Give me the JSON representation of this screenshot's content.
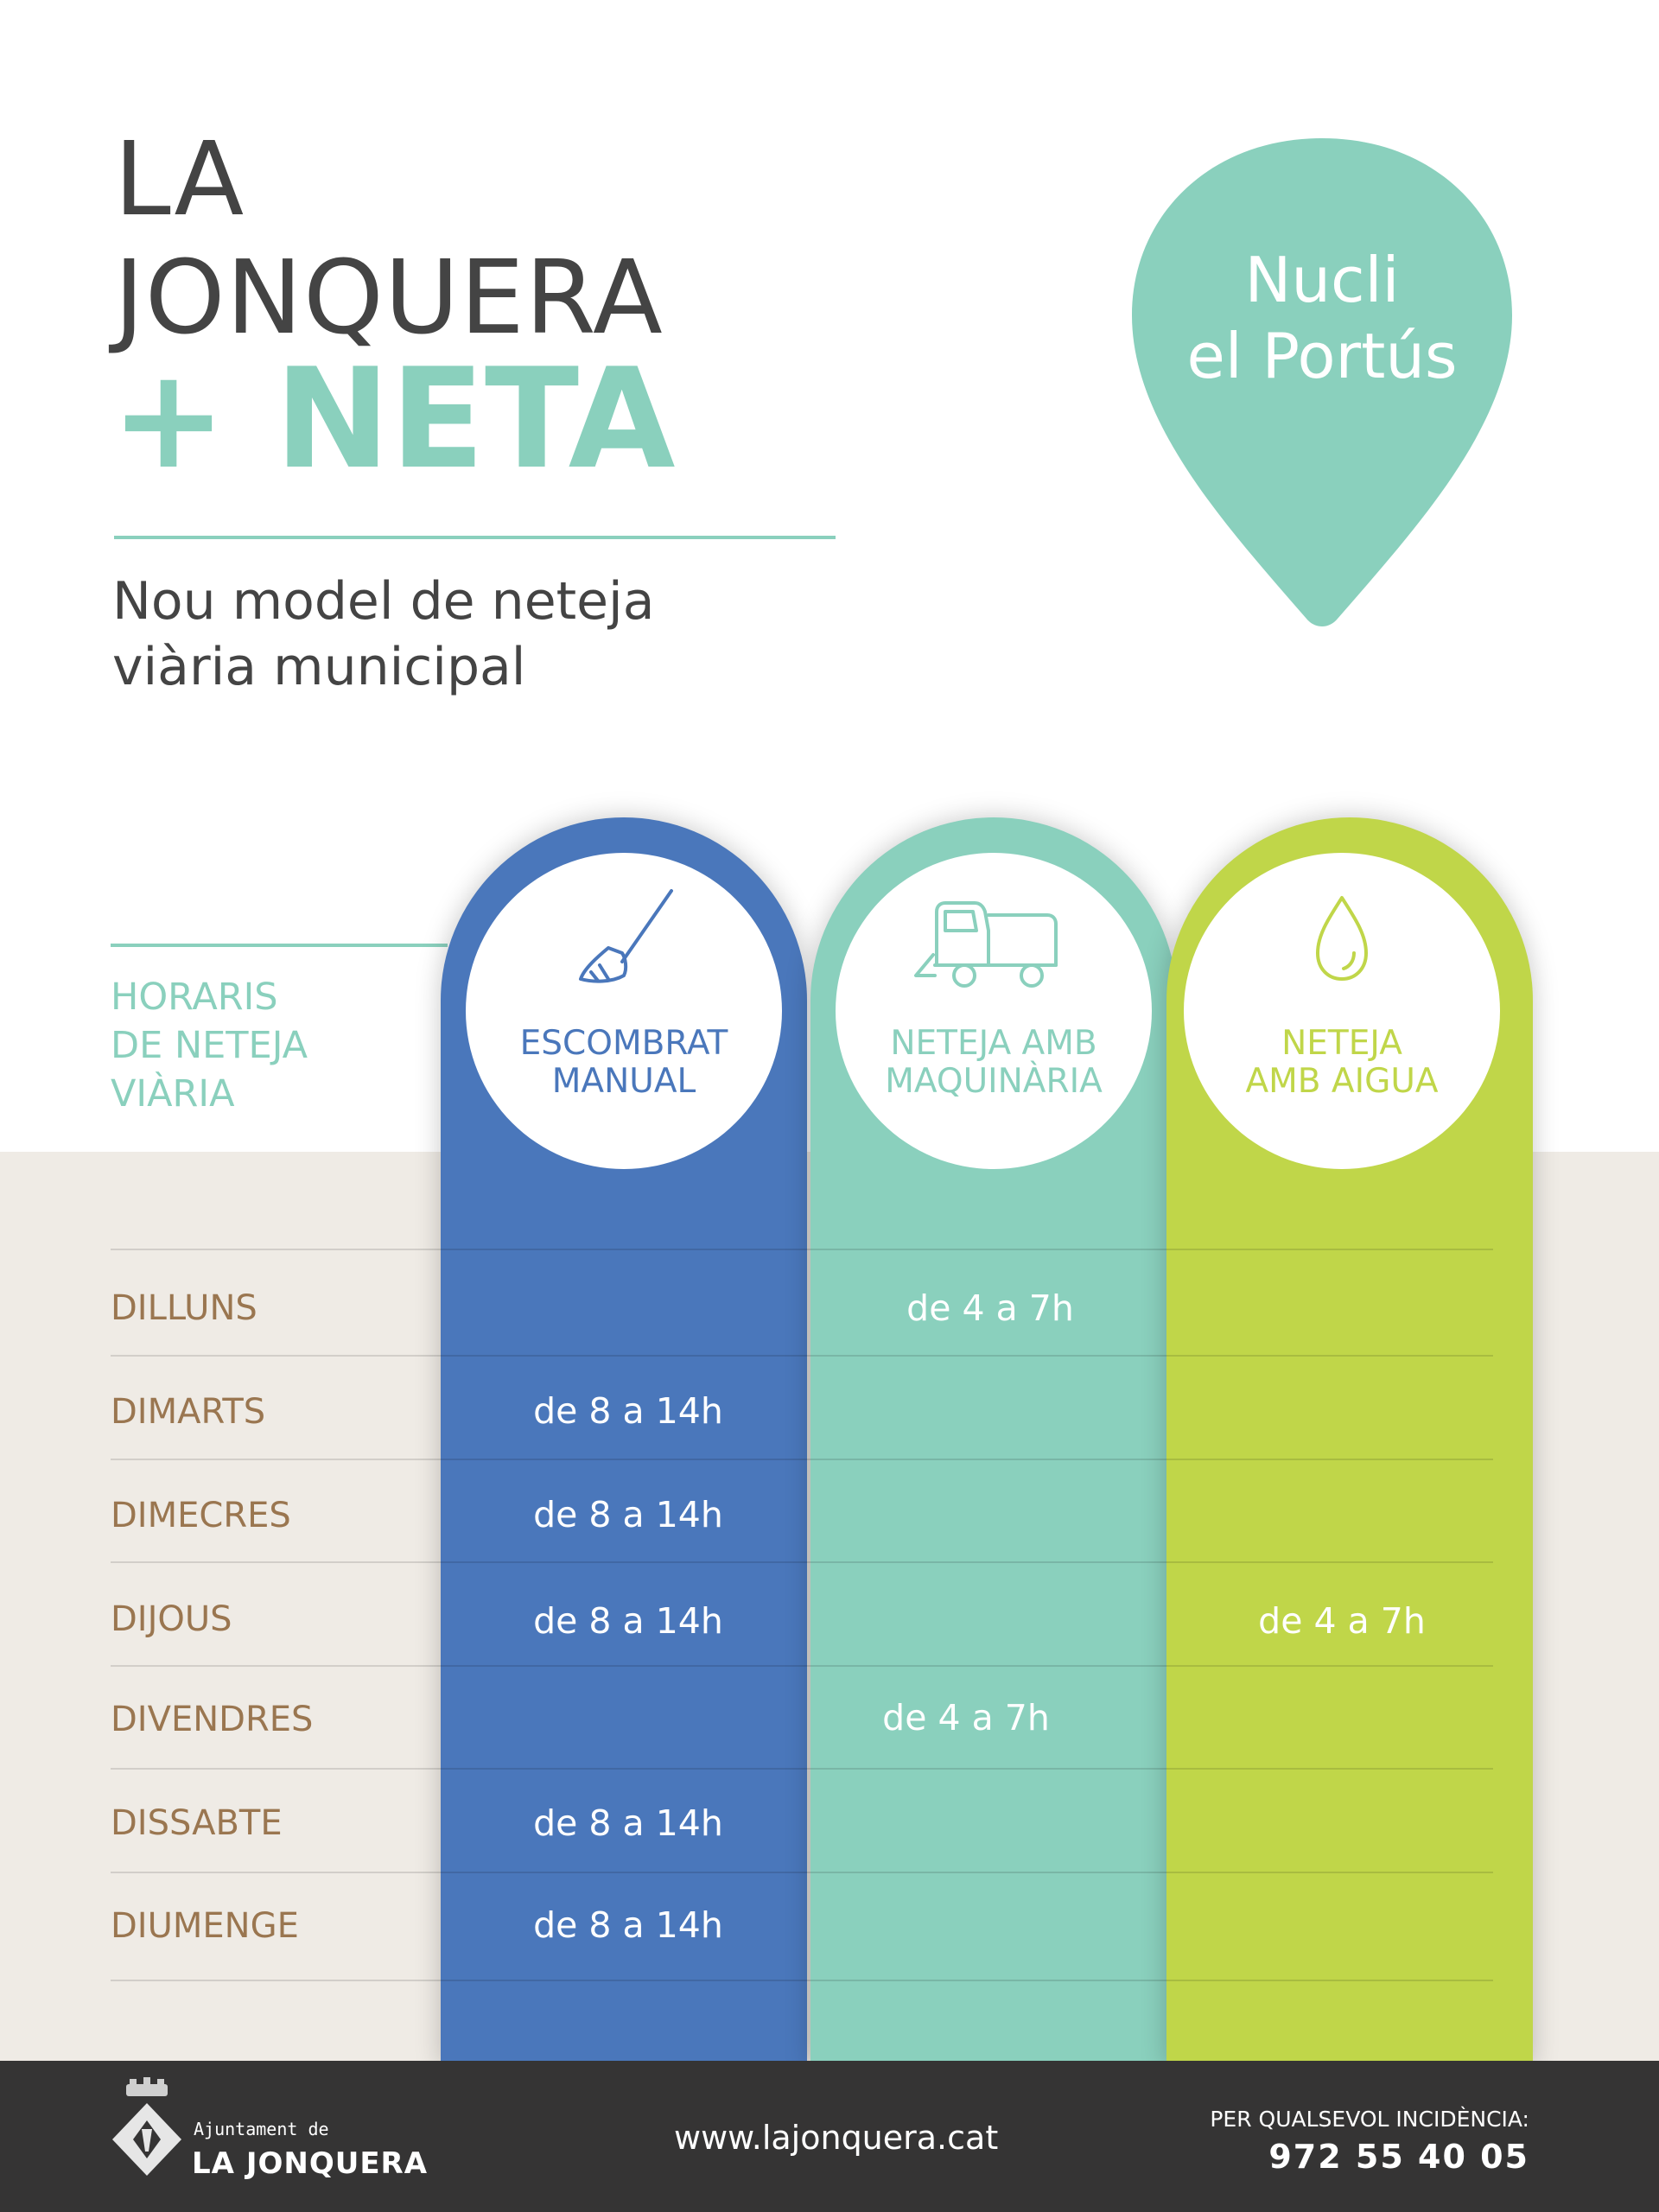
{
  "header": {
    "title_line1": "LA",
    "title_line2": "JONQUERA",
    "title_line3": "+ NETA",
    "subtitle": "Nou model de neteja viària municipal",
    "location_line1": "Nucli",
    "location_line2": "el Portús"
  },
  "colors": {
    "blue": "#4a77bb",
    "teal": "#8ad0bd",
    "green": "#c0d649",
    "brown": "#9a7650",
    "dark": "#353434"
  },
  "schedule": {
    "heading": [
      "HORARIS",
      "DE NETEJA",
      "VIÀRIA"
    ],
    "columns": [
      {
        "line1": "ESCOMBRAT",
        "line2": "MANUAL",
        "icon": "broom-icon"
      },
      {
        "line1": "NETEJA AMB",
        "line2": "MAQUINÀRIA",
        "icon": "street-sweeper-icon"
      },
      {
        "line1": "NETEJA",
        "line2": "AMB AIGUA",
        "icon": "water-drop-icon"
      }
    ],
    "rows": [
      {
        "day": "DILLUNS",
        "manual": "",
        "machine": "de 4 a 7h",
        "water": ""
      },
      {
        "day": "DIMARTS",
        "manual": "de 8 a 14h",
        "machine": "",
        "water": ""
      },
      {
        "day": "DIMECRES",
        "manual": "de 8 a 14h",
        "machine": "",
        "water": ""
      },
      {
        "day": "DIJOUS",
        "manual": "de 8 a 14h",
        "machine": "",
        "water": "de 4 a 7h"
      },
      {
        "day": "DIVENDRES",
        "manual": "",
        "machine": "de 4 a 7h",
        "water": ""
      },
      {
        "day": "DISSABTE",
        "manual": "de 8 a 14h",
        "machine": "",
        "water": ""
      },
      {
        "day": "DIUMENGE",
        "manual": "de 8 a 14h",
        "machine": "",
        "water": ""
      }
    ]
  },
  "footer": {
    "org_small": "Ajuntament de",
    "org_name": "LA JONQUERA",
    "website": "www.lajonquera.cat",
    "incident_label": "PER QUALSEVOL INCIDÈNCIA:",
    "phone": "972 55 40 05"
  }
}
